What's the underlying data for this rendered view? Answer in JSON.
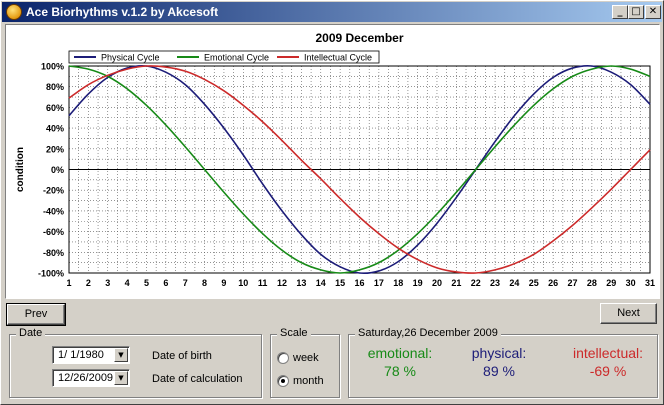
{
  "window": {
    "title": "Ace Biorhythms v.1.2 by Akcesoft",
    "minimize_glyph": "_",
    "maximize_glyph": "□",
    "close_glyph": "✕"
  },
  "buttons": {
    "prev": "Prev",
    "next": "Next"
  },
  "date_group": {
    "title": "Date",
    "birth_value": "1/ 1/1980",
    "birth_label": "Date of birth",
    "calc_value": "12/26/2009",
    "calc_label": "Date of calculation",
    "dropdown_glyph": "▼"
  },
  "scale_group": {
    "title": "Scale",
    "week_label": "week",
    "month_label": "month",
    "selected": "month"
  },
  "results_group": {
    "title": "Saturday,26 December 2009",
    "emotional_label": "emotional:",
    "emotional_value": "78 %",
    "physical_label": "physical:",
    "physical_value": "89 %",
    "intellectual_label": "intellectual:",
    "intellectual_value": "-69 %"
  },
  "colors": {
    "physical": "#1c1c78",
    "emotional": "#178a17",
    "intellectual": "#cc2a2a",
    "accent": "#0a246a"
  },
  "chart_data": {
    "type": "line",
    "title": "2009 December",
    "ylabel": "condition",
    "xlabel": "",
    "x": [
      1,
      2,
      3,
      4,
      5,
      6,
      7,
      8,
      9,
      10,
      11,
      12,
      13,
      14,
      15,
      16,
      17,
      18,
      19,
      20,
      21,
      22,
      23,
      24,
      25,
      26,
      27,
      28,
      29,
      30,
      31
    ],
    "x_ticks": [
      "1",
      "2",
      "3",
      "4",
      "5",
      "6",
      "7",
      "8",
      "9",
      "10",
      "11",
      "12",
      "13",
      "14",
      "15",
      "16",
      "17",
      "18",
      "19",
      "20",
      "21",
      "22",
      "23",
      "24",
      "25",
      "26",
      "27",
      "28",
      "29",
      "30",
      "31"
    ],
    "y_ticks": [
      "100%",
      "80%",
      "60%",
      "40%",
      "20%",
      "0%",
      "-20%",
      "-40%",
      "-60%",
      "-80%",
      "-100%"
    ],
    "ylim": [
      -100,
      100
    ],
    "grid": true,
    "legend_position": "top-left",
    "series": [
      {
        "name": "Physical Cycle",
        "color": "#1c1c78",
        "values": [
          52,
          73,
          89,
          98,
          100,
          94,
          82,
          63,
          40,
          14,
          -14,
          -40,
          -63,
          -82,
          -94,
          -100,
          -98,
          -89,
          -73,
          -52,
          -27,
          0,
          27,
          52,
          73,
          89,
          98,
          100,
          94,
          82,
          63
        ]
      },
      {
        "name": "Emotional Cycle",
        "color": "#178a17",
        "values": [
          100,
          97,
          90,
          78,
          62,
          43,
          22,
          0,
          -22,
          -43,
          -62,
          -78,
          -90,
          -97,
          -100,
          -97,
          -90,
          -78,
          -62,
          -43,
          -22,
          0,
          22,
          43,
          62,
          78,
          90,
          97,
          100,
          97,
          90
        ]
      },
      {
        "name": "Intellectual Cycle",
        "color": "#cc2a2a",
        "values": [
          69,
          82,
          91,
          97,
          100,
          99,
          95,
          87,
          76,
          62,
          46,
          28,
          9,
          -9,
          -28,
          -46,
          -62,
          -76,
          -87,
          -95,
          -99,
          -100,
          -97,
          -91,
          -82,
          -69,
          -54,
          -37,
          -19,
          0,
          19
        ]
      }
    ]
  }
}
